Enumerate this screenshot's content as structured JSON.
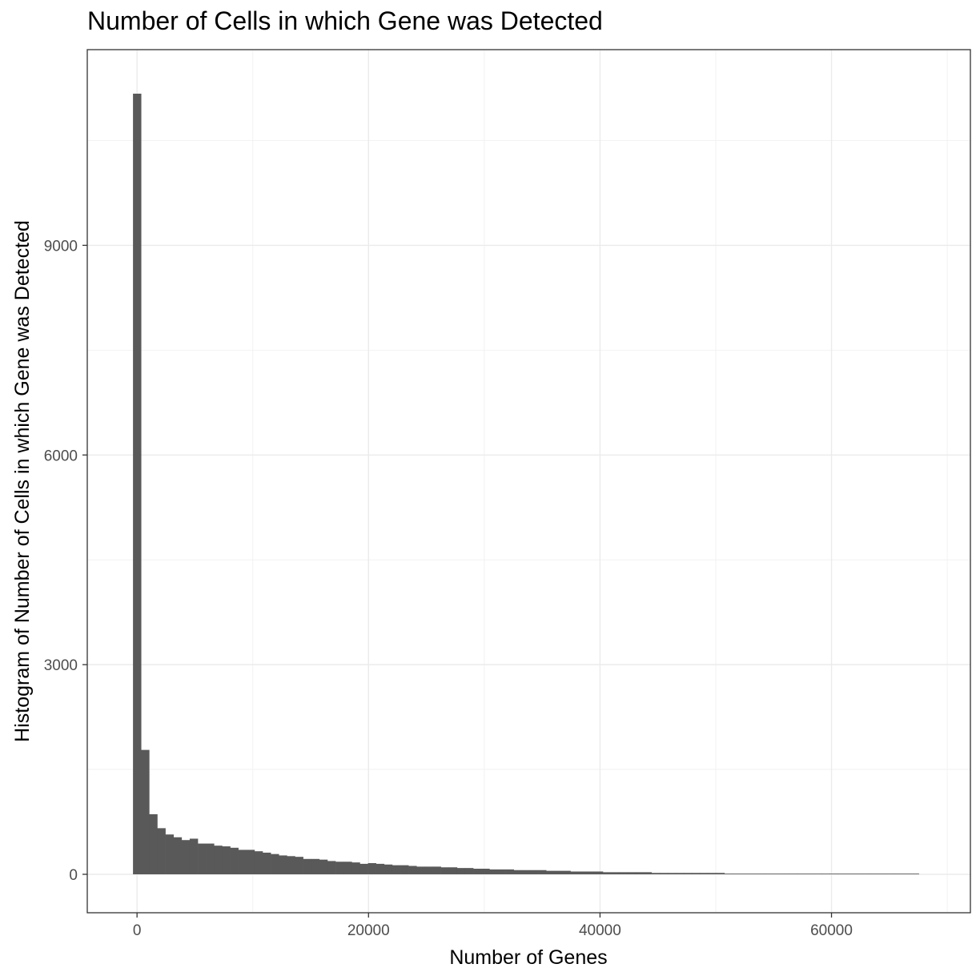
{
  "chart_data": {
    "type": "bar",
    "title": "Number of Cells in which Gene was Detected",
    "xlabel": "Number of Genes",
    "ylabel": "Histogram of Number of Cells in which Gene was Detected",
    "xlim": [
      -4300,
      72000
    ],
    "ylim": [
      -550,
      11800
    ],
    "x_ticks": [
      0,
      20000,
      40000,
      60000
    ],
    "y_ticks": [
      0,
      3000,
      6000,
      9000
    ],
    "x_tick_labels": [
      "0",
      "20000",
      "40000",
      "60000"
    ],
    "y_tick_labels": [
      "0",
      "3000",
      "6000",
      "9000"
    ],
    "bin_width": 700,
    "bin_start": -350,
    "values": [
      11170,
      1780,
      860,
      660,
      570,
      530,
      490,
      510,
      440,
      440,
      410,
      400,
      380,
      350,
      350,
      330,
      310,
      290,
      270,
      260,
      250,
      220,
      220,
      210,
      190,
      180,
      180,
      170,
      150,
      160,
      150,
      140,
      130,
      130,
      120,
      110,
      110,
      110,
      100,
      100,
      90,
      90,
      80,
      80,
      70,
      70,
      70,
      60,
      60,
      60,
      60,
      50,
      50,
      50,
      40,
      40,
      40,
      40,
      30,
      30,
      30,
      30,
      30,
      30,
      20,
      20,
      20,
      20,
      20,
      20,
      20,
      20,
      20,
      10,
      10,
      10,
      10,
      10,
      10,
      10,
      10,
      10,
      10,
      10,
      10,
      10,
      10,
      10,
      10,
      10,
      10,
      10,
      10,
      10,
      10,
      10,
      10
    ],
    "bar_color": "#595959",
    "grid": true,
    "theme": "bw"
  }
}
